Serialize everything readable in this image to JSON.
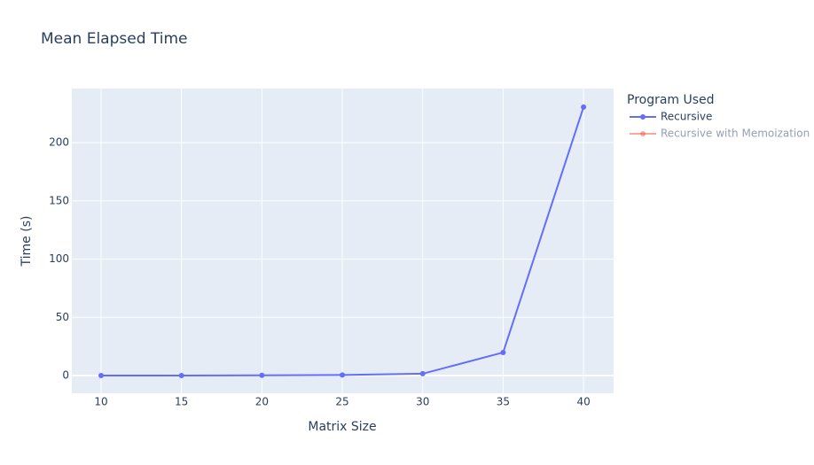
{
  "chart_data": {
    "type": "line",
    "title": "Mean Elapsed Time",
    "x_label": "Matrix Size",
    "y_label": "Time (s)",
    "x": [
      10,
      15,
      20,
      25,
      30,
      35,
      40
    ],
    "series": [
      {
        "name": "Recursive",
        "color": "#636efa",
        "values": [
          0.01,
          0.05,
          0.2,
          0.5,
          1.6,
          19.8,
          230.5
        ]
      },
      {
        "name": "Recursive with Memoization",
        "color": "#EF553B",
        "values": [
          null,
          null,
          null,
          null,
          null,
          null,
          null
        ],
        "visible": "legendonly"
      }
    ],
    "legend_title": "Program Used",
    "legend": "right",
    "xlim": [
      8.18,
      41.87
    ],
    "xticks": [
      10,
      15,
      20,
      25,
      30,
      35,
      40
    ],
    "ylim": [
      -15.2,
      246.4
    ],
    "yticks": [
      0,
      50,
      100,
      150,
      200
    ],
    "grid": true
  }
}
